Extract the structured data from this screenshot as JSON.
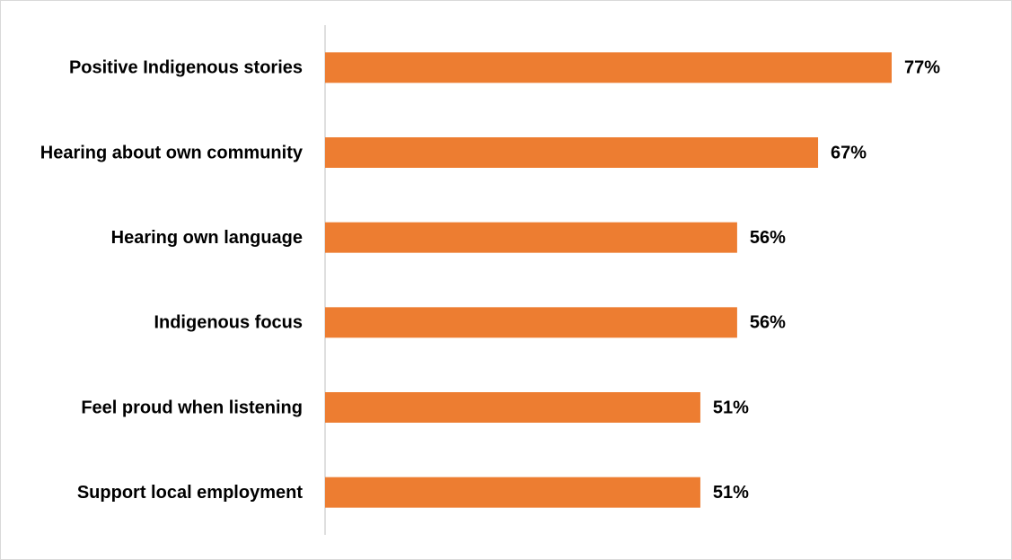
{
  "chart_data": {
    "type": "bar",
    "orientation": "horizontal",
    "categories": [
      "Positive Indigenous stories",
      "Hearing about own community",
      "Hearing own language",
      "Indigenous focus",
      "Feel proud when listening",
      "Support local employment"
    ],
    "values": [
      77,
      67,
      56,
      56,
      51,
      51
    ],
    "value_labels": [
      "77%",
      "67%",
      "56%",
      "56%",
      "51%",
      "51%"
    ],
    "color": "#ED7D31"
  }
}
